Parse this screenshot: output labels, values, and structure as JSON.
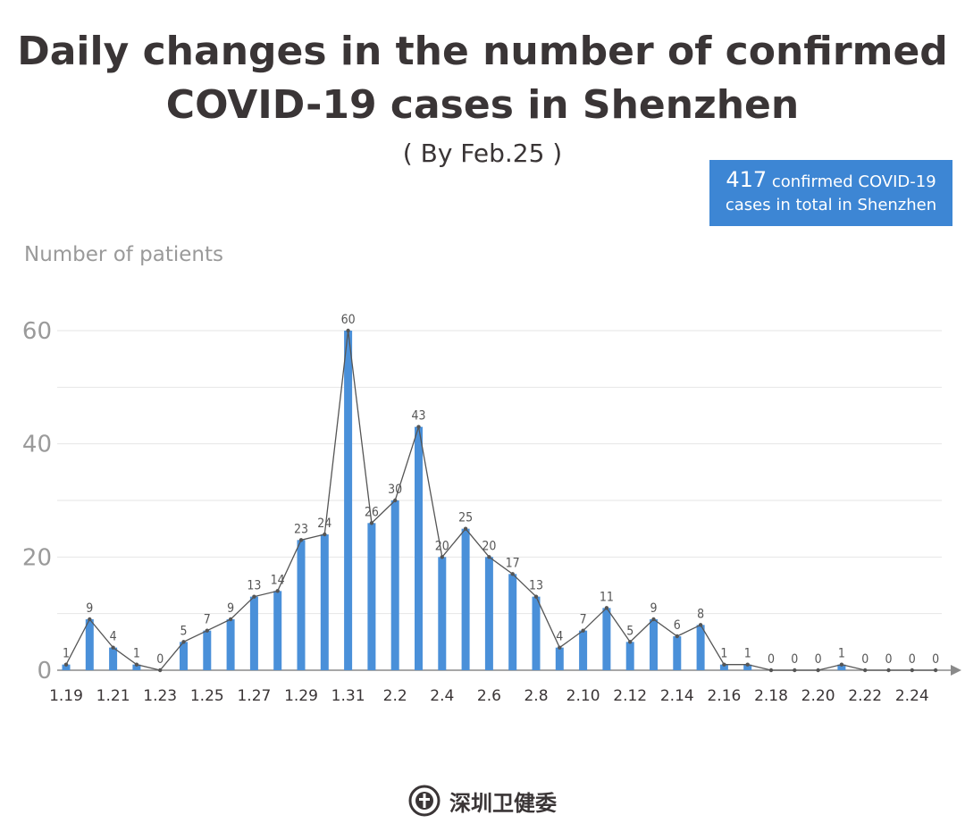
{
  "header": {
    "title_line1": "Daily changes in the number of  confirmed",
    "title_line2": "COVID-19 cases in Shenzhen",
    "subtitle": "( By Feb.25 )"
  },
  "summary": {
    "total": "417",
    "text_line1": "confirmed COVID-19",
    "text_line2": "cases in total in Shenzhen"
  },
  "footer": {
    "org_name": "深圳卫健委"
  },
  "colors": {
    "bar": "#4a90d9",
    "line": "#555555",
    "accent_box": "#3d86d4"
  },
  "chart_data": {
    "type": "bar",
    "overlay": "line",
    "ylabel": "Number of patients",
    "ylim": [
      0,
      60
    ],
    "yticks": [
      0,
      20,
      40,
      60
    ],
    "grid": "horizontal",
    "categories": [
      "1.19",
      "1.20",
      "1.21",
      "1.22",
      "1.23",
      "1.24",
      "1.25",
      "1.26",
      "1.27",
      "1.28",
      "1.29",
      "1.30",
      "1.31",
      "2.1",
      "2.2",
      "2.3",
      "2.4",
      "2.5",
      "2.6",
      "2.7",
      "2.8",
      "2.9",
      "2.10",
      "2.11",
      "2.12",
      "2.13",
      "2.14",
      "2.15",
      "2.16",
      "2.17",
      "2.18",
      "2.19",
      "2.20",
      "2.21",
      "2.22",
      "2.23",
      "2.24",
      "2.25"
    ],
    "xtick_labels": [
      "1.19",
      "1.21",
      "1.23",
      "1.25",
      "1.27",
      "1.29",
      "1.31",
      "2.2",
      "2.4",
      "2.6",
      "2.8",
      "2.10",
      "2.12",
      "2.14",
      "2.16",
      "2.18",
      "2.20",
      "2.22",
      "2.24"
    ],
    "values": [
      1,
      9,
      4,
      1,
      0,
      5,
      7,
      9,
      13,
      14,
      23,
      24,
      60,
      26,
      30,
      43,
      20,
      25,
      20,
      17,
      13,
      4,
      7,
      11,
      5,
      9,
      6,
      8,
      1,
      1,
      0,
      0,
      0,
      1,
      0,
      0,
      0,
      0
    ]
  }
}
